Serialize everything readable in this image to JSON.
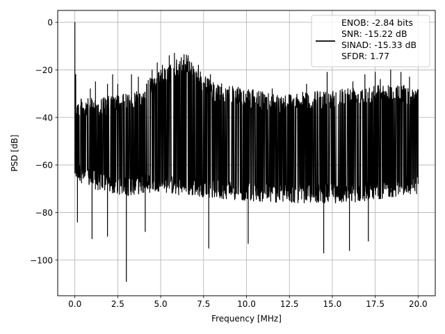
{
  "chart_data": {
    "type": "line",
    "xlabel": "Frequency [MHz]",
    "ylabel": "PSD [dB]",
    "xlim": [
      -1,
      21
    ],
    "ylim": [
      -115,
      5
    ],
    "x_ticks": [
      0.0,
      2.5,
      5.0,
      7.5,
      10.0,
      12.5,
      15.0,
      17.5,
      20.0
    ],
    "x_tick_labels": [
      "0.0",
      "2.5",
      "5.0",
      "7.5",
      "10.0",
      "12.5",
      "15.0",
      "17.5",
      "20.0"
    ],
    "y_ticks": [
      0,
      -20,
      -40,
      -60,
      -80,
      -100
    ],
    "y_tick_labels": [
      "0",
      "−20",
      "−40",
      "−60",
      "−80",
      "−100"
    ],
    "grid": true,
    "legend_position": "top-right",
    "series": [
      {
        "color": "#000000",
        "upper_envelope": {
          "x": [
            0.0,
            1.0,
            2.0,
            3.0,
            4.0,
            4.5,
            5.0,
            5.5,
            6.0,
            6.5,
            7.0,
            7.5,
            8.0,
            10.0,
            12.0,
            14.0,
            15.0,
            16.0,
            17.0,
            18.0,
            19.0,
            20.0
          ],
          "y": [
            -32,
            -32,
            -31,
            -30,
            -27,
            -22,
            -20,
            -18,
            -15,
            -13,
            -18,
            -22,
            -25,
            -28,
            -30,
            -29,
            -28,
            -27,
            -26,
            -26,
            -26,
            -28
          ]
        },
        "lower_envelope": {
          "x": [
            0.0,
            1.0,
            2.0,
            3.0,
            4.0,
            5.0,
            6.0,
            7.0,
            8.0,
            10.0,
            12.0,
            14.0,
            15.0,
            16.0,
            17.0,
            18.0,
            19.0,
            20.0
          ],
          "y": [
            -66,
            -70,
            -72,
            -73,
            -72,
            -71,
            -73,
            -73,
            -74,
            -75,
            -76,
            -76,
            -76,
            -76,
            -75,
            -74,
            -73,
            -72
          ]
        },
        "peaks": [
          {
            "x": 0.0,
            "y": 0
          },
          {
            "x": 0.05,
            "y": -22
          },
          {
            "x": 0.9,
            "y": -28
          },
          {
            "x": 1.2,
            "y": -25
          },
          {
            "x": 1.9,
            "y": -26
          },
          {
            "x": 2.2,
            "y": -22
          },
          {
            "x": 2.5,
            "y": -26
          },
          {
            "x": 3.3,
            "y": -22
          },
          {
            "x": 3.7,
            "y": -23
          },
          {
            "x": 4.5,
            "y": -20
          },
          {
            "x": 4.8,
            "y": -17
          },
          {
            "x": 5.1,
            "y": -18
          },
          {
            "x": 5.5,
            "y": -14
          },
          {
            "x": 5.8,
            "y": -13
          },
          {
            "x": 6.2,
            "y": -15
          },
          {
            "x": 6.6,
            "y": -14
          },
          {
            "x": 7.2,
            "y": -18
          },
          {
            "x": 7.9,
            "y": -22
          },
          {
            "x": 9.0,
            "y": -27
          },
          {
            "x": 11.5,
            "y": -28
          },
          {
            "x": 13.5,
            "y": -26
          },
          {
            "x": 14.7,
            "y": -21
          },
          {
            "x": 16.2,
            "y": -25
          },
          {
            "x": 16.9,
            "y": -22
          },
          {
            "x": 17.5,
            "y": -21
          },
          {
            "x": 17.8,
            "y": -24
          },
          {
            "x": 18.4,
            "y": -20
          },
          {
            "x": 19.0,
            "y": -21
          },
          {
            "x": 19.5,
            "y": -23
          },
          {
            "x": 20.0,
            "y": -31
          }
        ],
        "dips": [
          {
            "x": 0.15,
            "y": -84
          },
          {
            "x": 1.0,
            "y": -91
          },
          {
            "x": 1.9,
            "y": -90
          },
          {
            "x": 3.0,
            "y": -109
          },
          {
            "x": 4.1,
            "y": -88
          },
          {
            "x": 7.8,
            "y": -95
          },
          {
            "x": 10.1,
            "y": -93
          },
          {
            "x": 14.5,
            "y": -97
          },
          {
            "x": 16.0,
            "y": -96
          },
          {
            "x": 17.1,
            "y": -92
          }
        ]
      }
    ],
    "legend": {
      "lines": [
        "ENOB: -2.84 bits",
        "SNR: -15.22 dB",
        "SINAD: -15.33 dB",
        "SFDR: 1.77"
      ]
    }
  }
}
